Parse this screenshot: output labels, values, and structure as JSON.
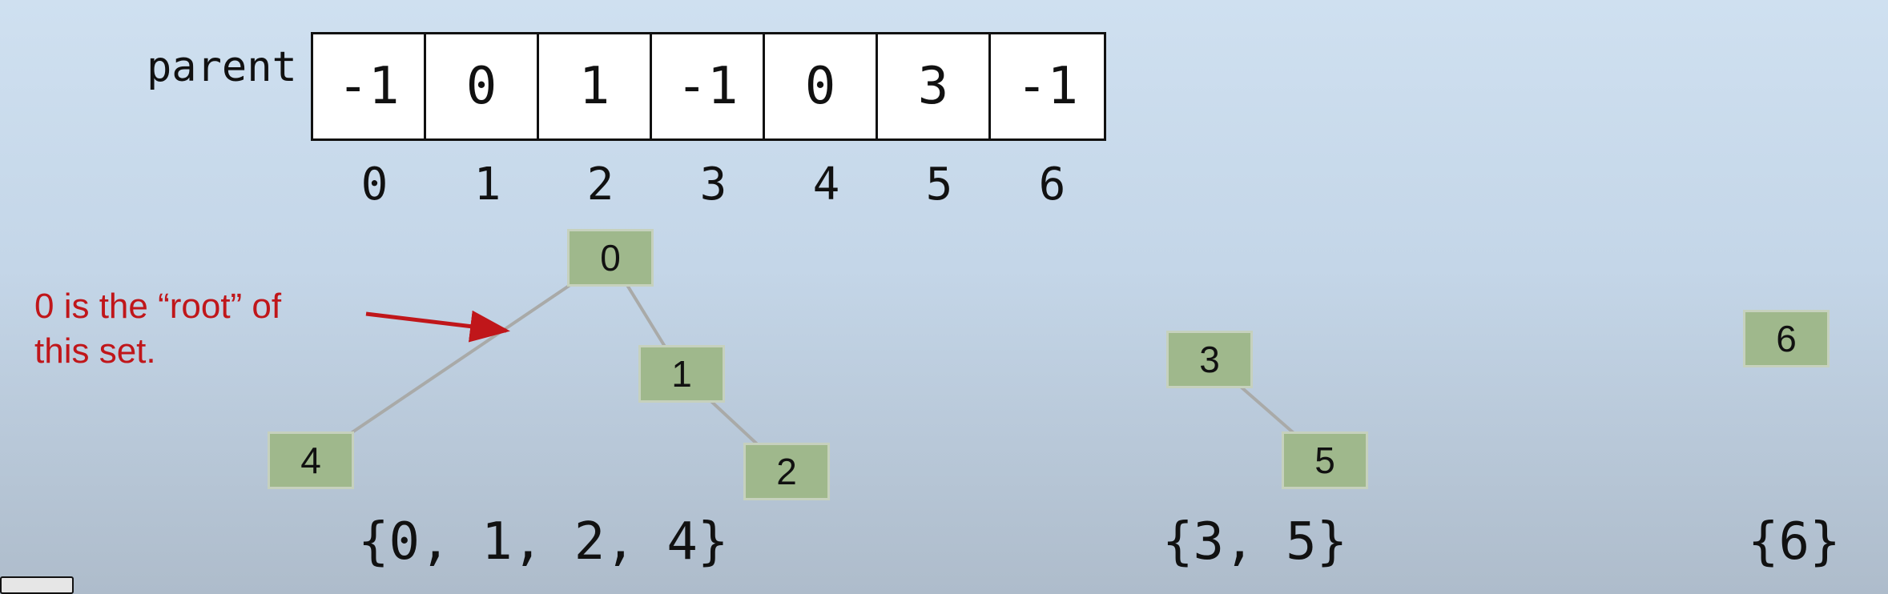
{
  "array": {
    "label": "parent",
    "values": [
      "-1",
      "0",
      "1",
      "-1",
      "0",
      "3",
      "-1"
    ],
    "indices": [
      "0",
      "1",
      "2",
      "3",
      "4",
      "5",
      "6"
    ]
  },
  "trees": {
    "nodes": [
      {
        "id": "0",
        "label": "0"
      },
      {
        "id": "1",
        "label": "1"
      },
      {
        "id": "2",
        "label": "2"
      },
      {
        "id": "3",
        "label": "3"
      },
      {
        "id": "4",
        "label": "4"
      },
      {
        "id": "5",
        "label": "5"
      },
      {
        "id": "6",
        "label": "6"
      }
    ],
    "edges": [
      {
        "from": "0",
        "to": "4"
      },
      {
        "from": "0",
        "to": "1"
      },
      {
        "from": "1",
        "to": "2"
      },
      {
        "from": "3",
        "to": "5"
      }
    ]
  },
  "annotation": {
    "text": "0 is the “root” of this set.",
    "color": "#c0161a"
  },
  "sets": [
    "{0, 1, 2, 4}",
    "{3, 5}",
    "{6}"
  ],
  "colors": {
    "node_fill": "#9fb88c",
    "edge": "#a9aaa8",
    "arrow": "#c0161a"
  }
}
